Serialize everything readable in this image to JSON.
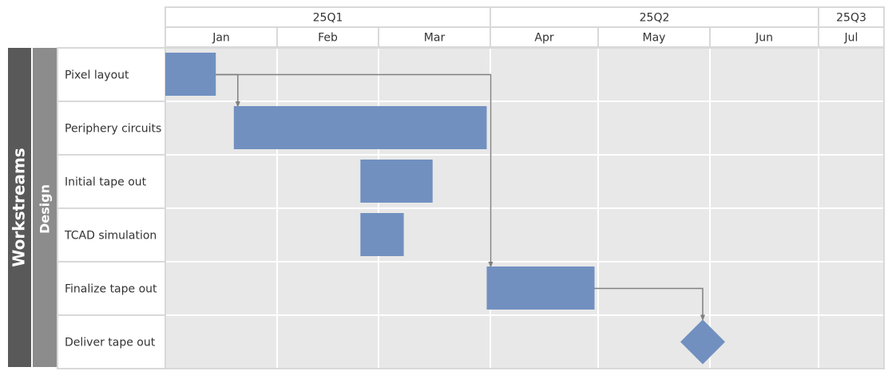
{
  "chart_data": {
    "type": "gantt",
    "year": 2025,
    "group_label": "Workstreams",
    "subgroup_label": "Design",
    "quarters": [
      {
        "label": "25Q1",
        "start": "2025-01-01",
        "end": "2025-04-01"
      },
      {
        "label": "25Q2",
        "start": "2025-04-01",
        "end": "2025-07-01"
      },
      {
        "label": "25Q3",
        "start": "2025-07-01",
        "end": "2025-08-01"
      }
    ],
    "months": [
      {
        "label": "Jan",
        "start": "2025-01-01",
        "end": "2025-02-01"
      },
      {
        "label": "Feb",
        "start": "2025-02-01",
        "end": "2025-03-01"
      },
      {
        "label": "Mar",
        "start": "2025-03-01",
        "end": "2025-04-01"
      },
      {
        "label": "Apr",
        "start": "2025-04-01",
        "end": "2025-05-01"
      },
      {
        "label": "May",
        "start": "2025-05-01",
        "end": "2025-06-01"
      },
      {
        "label": "Jun",
        "start": "2025-06-01",
        "end": "2025-07-01"
      },
      {
        "label": "Jul",
        "start": "2025-07-01",
        "end": "2025-08-01"
      }
    ],
    "tasks": [
      {
        "name": "Pixel layout",
        "start": "2025-01-01",
        "end": "2025-01-15",
        "milestone": false
      },
      {
        "name": "Periphery circuits",
        "start": "2025-01-20",
        "end": "2025-03-31",
        "milestone": false
      },
      {
        "name": "Initial tape out",
        "start": "2025-02-24",
        "end": "2025-03-16",
        "milestone": false
      },
      {
        "name": "TCAD simulation",
        "start": "2025-02-24",
        "end": "2025-03-08",
        "milestone": false
      },
      {
        "name": "Finalize tape out",
        "start": "2025-03-31",
        "end": "2025-04-30",
        "milestone": false
      },
      {
        "name": "Deliver tape out",
        "start": "2025-05-30",
        "end": "2025-05-30",
        "milestone": true
      }
    ],
    "dependencies": [
      {
        "from": "Pixel layout",
        "to": "Periphery circuits"
      },
      {
        "from": "Pixel layout",
        "to": "Finalize tape out"
      },
      {
        "from": "Finalize tape out",
        "to": "Deliver tape out"
      }
    ],
    "colors": {
      "bar": "#7190c0",
      "plot_bg": "#e8e8e8",
      "grid": "#ffffff",
      "group_band": "#595959",
      "subgroup_band": "#8c8c8c",
      "arrow": "#808080",
      "border": "#d9d9d9",
      "text": "#333333"
    }
  }
}
